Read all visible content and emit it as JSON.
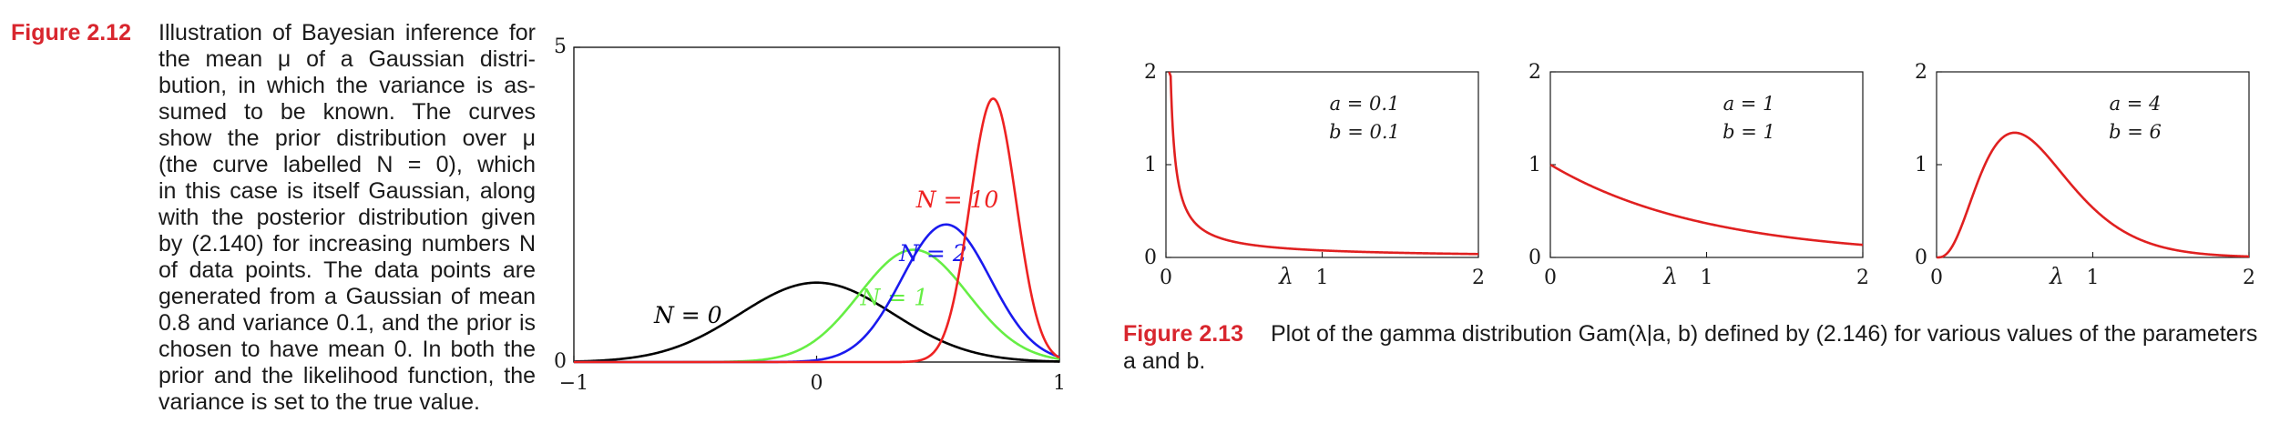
{
  "fig212": {
    "label": "Figure 2.12",
    "caption_lines": [
      "Illustration of Bayesian inference for",
      "the mean μ of a Gaussian distri-",
      "bution, in which the variance is as-",
      "sumed to be known.  The curves",
      "show the prior distribution over μ",
      "(the curve labelled N = 0), which",
      "in this case is itself Gaussian, along",
      "with the posterior distribution given",
      "by (2.140) for increasing numbers N",
      "of data points.  The data points are",
      "generated from a Gaussian of mean",
      "0.8 and variance 0.1, and the prior is",
      "chosen to have mean 0.  In both the",
      "prior and the likelihood function, the",
      "variance is set to the true value."
    ]
  },
  "fig213": {
    "label": "Figure 2.13",
    "caption_line1": "Plot of the gamma distribution Gam(λ|a, b) defined by (2.146) for various values of the parameters",
    "caption_line2": "a and b."
  },
  "colors": {
    "figure_label": "#d8262e",
    "n0": "#000000",
    "n1": "#66ee44",
    "n2": "#1a1aee",
    "n10": "#ee2222",
    "gamma": "#e02020"
  },
  "chart_data": [
    {
      "type": "line",
      "xlim": [
        -1,
        1
      ],
      "ylim": [
        0,
        5
      ],
      "x_ticks": [
        "−1",
        "0",
        "1"
      ],
      "y_ticks": [
        "0",
        "5"
      ],
      "prior_mean": 0,
      "true_mean": 0.8,
      "variance": 0.1,
      "series": [
        {
          "name": "N = 0",
          "N": 0,
          "color": "#000000"
        },
        {
          "name": "N = 1",
          "N": 1,
          "color": "#66ee44"
        },
        {
          "name": "N = 2",
          "N": 2,
          "color": "#1a1aee"
        },
        {
          "name": "N = 10",
          "N": 10,
          "color": "#ee2222"
        }
      ]
    },
    {
      "type": "line",
      "xlim": [
        0,
        2
      ],
      "ylim": [
        0,
        2
      ],
      "x_ticks": [
        "0",
        "1",
        "2"
      ],
      "y_ticks": [
        "0",
        "1",
        "2"
      ],
      "xlabel": "λ",
      "params": {
        "a": 0.1,
        "b": 0.1
      },
      "param_labels": [
        "a = 0.1",
        "b = 0.1"
      ]
    },
    {
      "type": "line",
      "xlim": [
        0,
        2
      ],
      "ylim": [
        0,
        2
      ],
      "x_ticks": [
        "0",
        "1",
        "2"
      ],
      "y_ticks": [
        "0",
        "1",
        "2"
      ],
      "xlabel": "λ",
      "params": {
        "a": 1,
        "b": 1
      },
      "param_labels": [
        "a = 1",
        "b = 1"
      ]
    },
    {
      "type": "line",
      "xlim": [
        0,
        2
      ],
      "ylim": [
        0,
        2
      ],
      "x_ticks": [
        "0",
        "1",
        "2"
      ],
      "y_ticks": [
        "0",
        "1",
        "2"
      ],
      "xlabel": "λ",
      "params": {
        "a": 4,
        "b": 6
      },
      "param_labels": [
        "a = 4",
        "b = 6"
      ]
    }
  ]
}
